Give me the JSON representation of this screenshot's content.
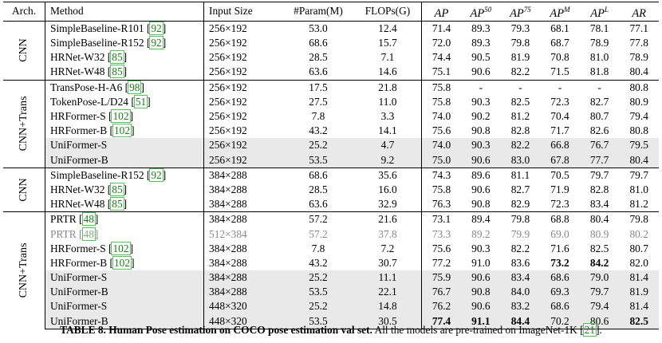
{
  "table": {
    "headers": {
      "arch": "Arch.",
      "method": "Method",
      "input_size": "Input Size",
      "params": "#Param(M)",
      "flops": "FLOPs(G)",
      "metrics": [
        {
          "base": "AP",
          "sup": ""
        },
        {
          "base": "AP",
          "sup": "50"
        },
        {
          "base": "AP",
          "sup": "75"
        },
        {
          "base": "AP",
          "sup": "M"
        },
        {
          "base": "AP",
          "sup": "L"
        },
        {
          "base": "AR",
          "sup": ""
        }
      ]
    },
    "groups": [
      {
        "arch": "CNN",
        "rows": [
          {
            "method": "SimpleBaseline-R101",
            "cite": "92",
            "input": "256×192",
            "params": "53.0",
            "flops": "12.4",
            "metrics": [
              "71.4",
              "89.3",
              "79.3",
              "68.1",
              "78.1",
              "77.1"
            ],
            "bold": [
              false,
              false,
              false,
              false,
              false,
              false
            ],
            "shaded": false,
            "grey": false
          },
          {
            "method": "SimpleBaseline-R152",
            "cite": "92",
            "input": "256×192",
            "params": "68.6",
            "flops": "15.7",
            "metrics": [
              "72.0",
              "89.3",
              "79.8",
              "68.7",
              "78.9",
              "77.8"
            ],
            "bold": [
              false,
              false,
              false,
              false,
              false,
              false
            ],
            "shaded": false,
            "grey": false
          },
          {
            "method": "HRNet-W32",
            "cite": "85",
            "input": "256×192",
            "params": "28.5",
            "flops": "7.1",
            "metrics": [
              "74.4",
              "90.5",
              "81.9",
              "70.8",
              "81.0",
              "78.9"
            ],
            "bold": [
              false,
              false,
              false,
              false,
              false,
              false
            ],
            "shaded": false,
            "grey": false
          },
          {
            "method": "HRNet-W48",
            "cite": "85",
            "input": "256×192",
            "params": "63.6",
            "flops": "14.6",
            "metrics": [
              "75.1",
              "90.6",
              "82.2",
              "71.5",
              "81.8",
              "80.4"
            ],
            "bold": [
              false,
              false,
              false,
              false,
              false,
              false
            ],
            "shaded": false,
            "grey": false
          }
        ]
      },
      {
        "arch": "CNN+Trans",
        "rows": [
          {
            "method": "TransPose-H-A6",
            "cite": "98",
            "input": "256×192",
            "params": "17.5",
            "flops": "21.8",
            "metrics": [
              "75.8",
              "-",
              "-",
              "-",
              "-",
              "80.8"
            ],
            "bold": [
              false,
              false,
              false,
              false,
              false,
              false
            ],
            "shaded": false,
            "grey": false
          },
          {
            "method": "TokenPose-L/D24",
            "cite": "51",
            "input": "256×192",
            "params": "27.5",
            "flops": "11.0",
            "metrics": [
              "75.8",
              "90.3",
              "82.5",
              "72.3",
              "82.7",
              "80.9"
            ],
            "bold": [
              false,
              false,
              false,
              false,
              false,
              false
            ],
            "shaded": false,
            "grey": false
          },
          {
            "method": "HRFormer-S",
            "cite": "102",
            "input": "256×192",
            "params": "7.8",
            "flops": "3.3",
            "metrics": [
              "74.0",
              "90.2",
              "81.2",
              "70.4",
              "80.7",
              "79.4"
            ],
            "bold": [
              false,
              false,
              false,
              false,
              false,
              false
            ],
            "shaded": false,
            "grey": false
          },
          {
            "method": "HRFormer-B",
            "cite": "102",
            "input": "256×192",
            "params": "43.2",
            "flops": "14.1",
            "metrics": [
              "75.6",
              "90.8",
              "82.8",
              "71.7",
              "82.6",
              "80.8"
            ],
            "bold": [
              false,
              false,
              false,
              false,
              false,
              false
            ],
            "shaded": false,
            "grey": false
          },
          {
            "method": "UniFormer-S",
            "cite": "",
            "input": "256×192",
            "params": "25.2",
            "flops": "4.7",
            "metrics": [
              "74.0",
              "90.3",
              "82.2",
              "66.8",
              "76.7",
              "79.5"
            ],
            "bold": [
              false,
              false,
              false,
              false,
              false,
              false
            ],
            "shaded": true,
            "grey": false
          },
          {
            "method": "UniFormer-B",
            "cite": "",
            "input": "256×192",
            "params": "53.5",
            "flops": "9.2",
            "metrics": [
              "75.0",
              "90.6",
              "83.0",
              "67.8",
              "77.7",
              "80.4"
            ],
            "bold": [
              false,
              false,
              false,
              false,
              false,
              false
            ],
            "shaded": true,
            "grey": false
          }
        ]
      },
      {
        "arch": "CNN",
        "rows": [
          {
            "method": "SimpleBaseline-R152",
            "cite": "92",
            "input": "384×288",
            "params": "68.6",
            "flops": "35.6",
            "metrics": [
              "74.3",
              "89.6",
              "81.1",
              "70.5",
              "79.7",
              "79.7"
            ],
            "bold": [
              false,
              false,
              false,
              false,
              false,
              false
            ],
            "shaded": false,
            "grey": false
          },
          {
            "method": "HRNet-W32",
            "cite": "85",
            "input": "384×288",
            "params": "28.5",
            "flops": "16.0",
            "metrics": [
              "75.8",
              "90.6",
              "82.7",
              "71.9",
              "82.8",
              "81.0"
            ],
            "bold": [
              false,
              false,
              false,
              false,
              false,
              false
            ],
            "shaded": false,
            "grey": false
          },
          {
            "method": "HRNet-W48",
            "cite": "85",
            "input": "384×288",
            "params": "63.6",
            "flops": "32.9",
            "metrics": [
              "76.3",
              "90.8",
              "82.9",
              "72.3",
              "83.4",
              "81.2"
            ],
            "bold": [
              false,
              false,
              false,
              false,
              false,
              false
            ],
            "shaded": false,
            "grey": false
          }
        ]
      },
      {
        "arch": "CNN+Trans",
        "rows": [
          {
            "method": "PRTR",
            "cite": "48",
            "input": "384×288",
            "params": "57.2",
            "flops": "21.6",
            "metrics": [
              "73.1",
              "89.4",
              "79.8",
              "68.8",
              "80.4",
              "79.8"
            ],
            "bold": [
              false,
              false,
              false,
              false,
              false,
              false
            ],
            "shaded": false,
            "grey": false
          },
          {
            "method": "PRTR",
            "cite": "48",
            "input": "512×384",
            "params": "57.2",
            "flops": "37.8",
            "metrics": [
              "73.3",
              "89.2",
              "79.9",
              "69.0",
              "80.9",
              "80.2"
            ],
            "bold": [
              false,
              false,
              false,
              false,
              false,
              false
            ],
            "shaded": false,
            "grey": true
          },
          {
            "method": "HRFormer-S",
            "cite": "102",
            "input": "384×288",
            "params": "7.8",
            "flops": "7.2",
            "metrics": [
              "75.6",
              "90.3",
              "82.2",
              "71.6",
              "82.5",
              "80.7"
            ],
            "bold": [
              false,
              false,
              false,
              false,
              false,
              false
            ],
            "shaded": false,
            "grey": false
          },
          {
            "method": "HRFormer-B",
            "cite": "102",
            "input": "384×288",
            "params": "43.2",
            "flops": "30.7",
            "metrics": [
              "77.2",
              "91.0",
              "83.6",
              "73.2",
              "84.2",
              "82.0"
            ],
            "bold": [
              false,
              false,
              false,
              true,
              true,
              false
            ],
            "shaded": false,
            "grey": false
          },
          {
            "method": "UniFormer-S",
            "cite": "",
            "input": "384×288",
            "params": "25.2",
            "flops": "11.1",
            "metrics": [
              "75.9",
              "90.6",
              "83.4",
              "68.6",
              "79.0",
              "81.4"
            ],
            "bold": [
              false,
              false,
              false,
              false,
              false,
              false
            ],
            "shaded": true,
            "grey": false
          },
          {
            "method": "UniFormer-B",
            "cite": "",
            "input": "384×288",
            "params": "53.5",
            "flops": "22.1",
            "metrics": [
              "76.7",
              "90.8",
              "84.0",
              "69.3",
              "79.7",
              "81.9"
            ],
            "bold": [
              false,
              false,
              false,
              false,
              false,
              false
            ],
            "shaded": true,
            "grey": false
          },
          {
            "method": "UniFormer-S",
            "cite": "",
            "input": "448×320",
            "params": "25.2",
            "flops": "14.8",
            "metrics": [
              "76.2",
              "90.6",
              "83.2",
              "68.6",
              "79.4",
              "81.4"
            ],
            "bold": [
              false,
              false,
              false,
              false,
              false,
              false
            ],
            "shaded": true,
            "grey": false
          },
          {
            "method": "UniFormer-B",
            "cite": "",
            "input": "448×320",
            "params": "53.5",
            "flops": "30.5",
            "metrics": [
              "77.4",
              "91.1",
              "84.4",
              "70.2",
              "80.6",
              "82.5"
            ],
            "bold": [
              true,
              true,
              true,
              false,
              false,
              true
            ],
            "shaded": true,
            "grey": false
          }
        ]
      }
    ]
  },
  "caption": {
    "bold": "TABLE 8. Human Pose estimation on COCO pose estimation val set.",
    "text_before_cite": " All the models are pre-trained on ImageNet-1K ",
    "cite": "21",
    "text_after_cite": "."
  }
}
